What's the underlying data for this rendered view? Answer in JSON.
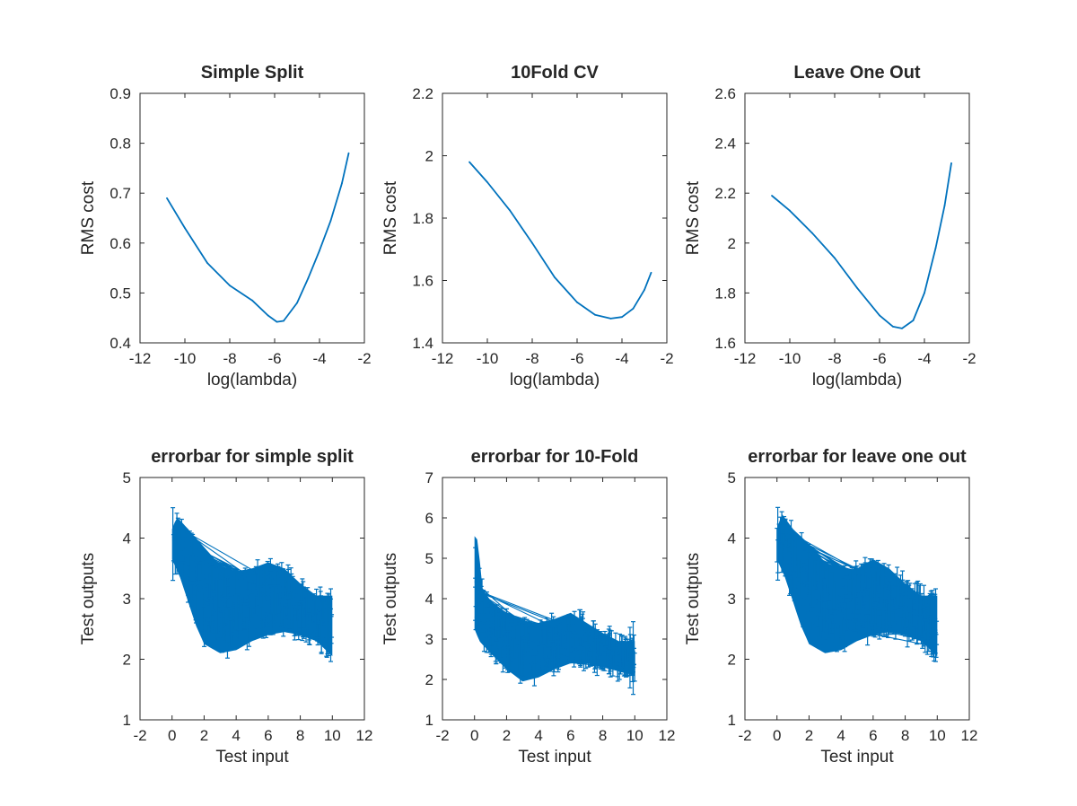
{
  "colors": {
    "line": "#0072BD",
    "axis": "#262626",
    "background": "#ffffff"
  },
  "chart_data": [
    {
      "type": "line",
      "title": "Simple Split",
      "xlabel": "log(lambda)",
      "ylabel": "RMS cost",
      "xlim": [
        -12,
        -2
      ],
      "ylim": [
        0.4,
        0.9
      ],
      "xticks": [
        "-12",
        "-10",
        "-8",
        "-6",
        "-4",
        "-2"
      ],
      "yticks": [
        "0.4",
        "0.5",
        "0.6",
        "0.7",
        "0.8",
        "0.9"
      ],
      "x": [
        -10.8,
        -10,
        -9,
        -8,
        -7,
        -6.3,
        -5.9,
        -5.6,
        -5,
        -4.5,
        -4,
        -3.5,
        -3,
        -2.7
      ],
      "y": [
        0.69,
        0.63,
        0.56,
        0.515,
        0.485,
        0.455,
        0.442,
        0.444,
        0.48,
        0.53,
        0.585,
        0.645,
        0.72,
        0.78
      ]
    },
    {
      "type": "line",
      "title": "10Fold CV",
      "xlabel": "log(lambda)",
      "ylabel": "RMS cost",
      "xlim": [
        -12,
        -2
      ],
      "ylim": [
        1.4,
        2.2
      ],
      "xticks": [
        "-12",
        "-10",
        "-8",
        "-6",
        "-4",
        "-2"
      ],
      "yticks": [
        "1.4",
        "1.6",
        "1.8",
        "2",
        "2.2"
      ],
      "x": [
        -10.8,
        -10,
        -9,
        -8,
        -7,
        -6,
        -5.2,
        -4.5,
        -4,
        -3.5,
        -3,
        -2.7
      ],
      "y": [
        1.98,
        1.915,
        1.825,
        1.72,
        1.61,
        1.53,
        1.49,
        1.478,
        1.483,
        1.51,
        1.57,
        1.625
      ]
    },
    {
      "type": "line",
      "title": "Leave One Out",
      "xlabel": "log(lambda)",
      "ylabel": "RMS cost",
      "xlim": [
        -12,
        -2
      ],
      "ylim": [
        1.6,
        2.6
      ],
      "xticks": [
        "-12",
        "-10",
        "-8",
        "-6",
        "-4",
        "-2"
      ],
      "yticks": [
        "1.6",
        "1.8",
        "2",
        "2.2",
        "2.4",
        "2.6"
      ],
      "x": [
        -10.8,
        -10,
        -9,
        -8,
        -7,
        -6,
        -5.4,
        -5,
        -4.5,
        -4,
        -3.5,
        -3.1,
        -2.8
      ],
      "y": [
        2.19,
        2.13,
        2.04,
        1.94,
        1.82,
        1.71,
        1.665,
        1.658,
        1.69,
        1.8,
        1.98,
        2.15,
        2.32
      ]
    },
    {
      "type": "errorbar",
      "title": "errorbar for simple split",
      "xlabel": "Test input",
      "ylabel": "Test outputs",
      "xlim": [
        -2,
        12
      ],
      "ylim": [
        1,
        5
      ],
      "xticks": [
        "-2",
        "0",
        "2",
        "4",
        "6",
        "8",
        "10",
        "12"
      ],
      "yticks": [
        "1",
        "2",
        "3",
        "4",
        "5"
      ],
      "x_range": [
        0,
        10
      ],
      "upper": [
        [
          0,
          4.2
        ],
        [
          0.3,
          4.4
        ],
        [
          1,
          4.2
        ],
        [
          2,
          3.9
        ],
        [
          3,
          3.6
        ],
        [
          4,
          3.5
        ],
        [
          5,
          3.55
        ],
        [
          6,
          3.65
        ],
        [
          7,
          3.55
        ],
        [
          8,
          3.3
        ],
        [
          9,
          3.1
        ],
        [
          10,
          3.1
        ]
      ],
      "lower": [
        [
          0,
          3.6
        ],
        [
          0.5,
          3.3
        ],
        [
          1,
          2.9
        ],
        [
          1.5,
          2.5
        ],
        [
          2,
          2.2
        ],
        [
          3,
          2.05
        ],
        [
          4,
          2.1
        ],
        [
          5,
          2.25
        ],
        [
          6,
          2.35
        ],
        [
          7,
          2.4
        ],
        [
          8,
          2.35
        ],
        [
          9,
          2.25
        ],
        [
          10,
          2.0
        ]
      ],
      "bar_half_min": 0.08,
      "bar_half_max": 0.3
    },
    {
      "type": "errorbar",
      "title": "errorbar for 10-Fold",
      "xlabel": "Test input",
      "ylabel": "Test outputs",
      "xlim": [
        -2,
        12
      ],
      "ylim": [
        1,
        7
      ],
      "xticks": [
        "-2",
        "0",
        "2",
        "4",
        "6",
        "8",
        "10",
        "12"
      ],
      "yticks": [
        "1",
        "2",
        "3",
        "4",
        "5",
        "6",
        "7"
      ],
      "x_range": [
        0,
        10
      ],
      "upper": [
        [
          0,
          5.6
        ],
        [
          0.2,
          5.5
        ],
        [
          0.5,
          4.3
        ],
        [
          1,
          4.0
        ],
        [
          2,
          3.7
        ],
        [
          3,
          3.5
        ],
        [
          4,
          3.45
        ],
        [
          5,
          3.55
        ],
        [
          6,
          3.7
        ],
        [
          7,
          3.45
        ],
        [
          8,
          3.2
        ],
        [
          9,
          3.0
        ],
        [
          10,
          3.0
        ]
      ],
      "lower": [
        [
          0,
          3.2
        ],
        [
          0.3,
          2.9
        ],
        [
          1,
          2.6
        ],
        [
          2,
          2.2
        ],
        [
          3,
          1.9
        ],
        [
          4,
          2.0
        ],
        [
          5,
          2.2
        ],
        [
          6,
          2.35
        ],
        [
          7,
          2.35
        ],
        [
          8,
          2.25
        ],
        [
          9,
          2.15
        ],
        [
          10,
          2.05
        ]
      ],
      "bar_half_min": 0.1,
      "bar_half_max": 0.4
    },
    {
      "type": "errorbar",
      "title": "errorbar for leave one out",
      "xlabel": "Test input",
      "ylabel": "Test outputs",
      "xlim": [
        -2,
        12
      ],
      "ylim": [
        1,
        5
      ],
      "xticks": [
        "-2",
        "0",
        "2",
        "4",
        "6",
        "8",
        "10",
        "12"
      ],
      "yticks": [
        "1",
        "2",
        "3",
        "4",
        "5"
      ],
      "x_range": [
        0,
        10
      ],
      "upper": [
        [
          0,
          4.2
        ],
        [
          0.3,
          4.45
        ],
        [
          1,
          4.2
        ],
        [
          2,
          3.95
        ],
        [
          3,
          3.65
        ],
        [
          4,
          3.5
        ],
        [
          5,
          3.55
        ],
        [
          6,
          3.7
        ],
        [
          7,
          3.55
        ],
        [
          8,
          3.3
        ],
        [
          9,
          3.1
        ],
        [
          10,
          3.1
        ]
      ],
      "lower": [
        [
          0,
          3.6
        ],
        [
          0.5,
          3.3
        ],
        [
          1,
          2.9
        ],
        [
          1.5,
          2.5
        ],
        [
          2,
          2.2
        ],
        [
          3,
          2.05
        ],
        [
          4,
          2.1
        ],
        [
          5,
          2.25
        ],
        [
          6,
          2.35
        ],
        [
          7,
          2.4
        ],
        [
          8,
          2.35
        ],
        [
          9,
          2.25
        ],
        [
          10,
          2.0
        ]
      ],
      "bar_half_min": 0.08,
      "bar_half_max": 0.3
    }
  ]
}
